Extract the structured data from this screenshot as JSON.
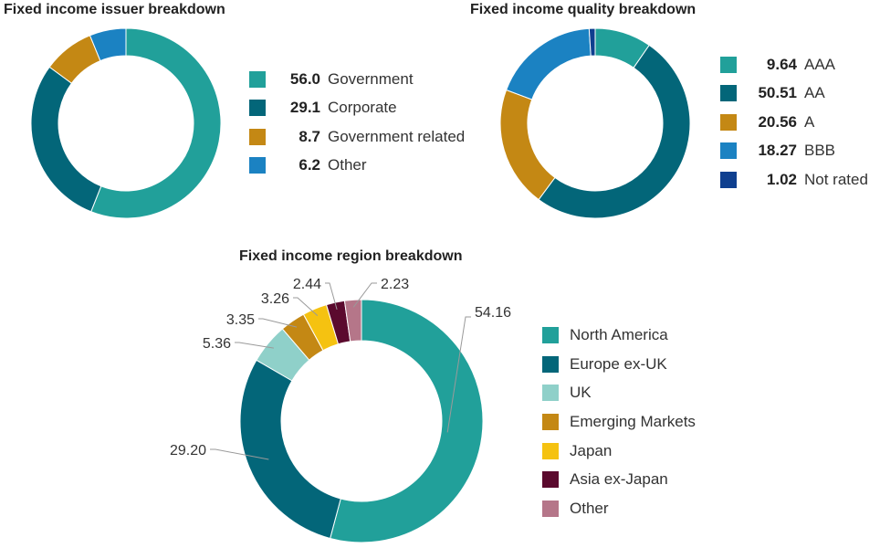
{
  "chart_data": [
    {
      "type": "pie",
      "variant": "donut",
      "title": "Fixed income issuer breakdown",
      "categories": [
        "Government",
        "Corporate",
        "Government related",
        "Other"
      ],
      "values": [
        56.0,
        29.1,
        8.7,
        6.2
      ],
      "display_values": [
        "56.0",
        "29.1",
        "8.7",
        "6.2"
      ],
      "colors": [
        "#21a09a",
        "#036679",
        "#c48814",
        "#1b82c2"
      ],
      "legend": "right"
    },
    {
      "type": "pie",
      "variant": "donut",
      "title": "Fixed income quality breakdown",
      "categories": [
        "AAA",
        "AA",
        "A",
        "BBB",
        "Not rated"
      ],
      "values": [
        9.64,
        50.51,
        20.56,
        18.27,
        1.02
      ],
      "display_values": [
        "9.64",
        "50.51",
        "20.56",
        "18.27",
        "1.02"
      ],
      "colors": [
        "#21a09a",
        "#036679",
        "#c48814",
        "#1b82c2",
        "#0f3f8f"
      ],
      "legend": "right"
    },
    {
      "type": "pie",
      "variant": "donut",
      "title": "Fixed income region breakdown",
      "categories": [
        "North America",
        "Europe ex-UK",
        "UK",
        "Emerging Markets",
        "Japan",
        "Asia ex-Japan",
        "Other"
      ],
      "values": [
        54.16,
        29.2,
        5.36,
        3.35,
        3.26,
        2.44,
        2.23
      ],
      "display_values": [
        "54.16",
        "29.20",
        "5.36",
        "3.35",
        "3.26",
        "2.44",
        "2.23"
      ],
      "colors": [
        "#21a09a",
        "#036679",
        "#8fd0c9",
        "#c48814",
        "#f5c211",
        "#5b0a2e",
        "#b57689"
      ],
      "legend": "right",
      "data_labels": "outside-callouts"
    }
  ]
}
